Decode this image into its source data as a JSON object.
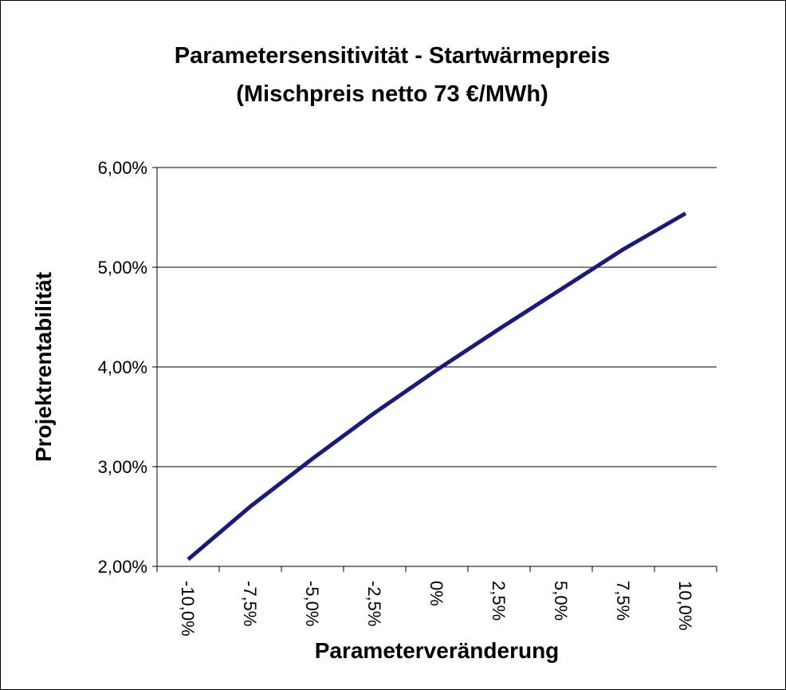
{
  "chart_data": {
    "type": "line",
    "title": [
      "Parametersensitivität - Startwärmepreis",
      "(Mischpreis netto 73 €/MWh)"
    ],
    "x_label": "Parameterveränderung",
    "y_label": "Projektrentabilität",
    "categories": [
      "-10,0%",
      "-7,5%",
      "-5,0%",
      "-2,5%",
      "0%",
      "2,5%",
      "5,0%",
      "7,5%",
      "10,0%"
    ],
    "series": [
      {
        "color": "#1a1a7a",
        "values": [
          2.07,
          2.6,
          3.08,
          3.54,
          3.97,
          4.38,
          4.78,
          5.18,
          5.54
        ]
      }
    ],
    "ylim": [
      2,
      6
    ],
    "yticks": [
      {
        "value": 2,
        "label": "2,00%"
      },
      {
        "value": 3,
        "label": "3,00%"
      },
      {
        "value": 4,
        "label": "4,00%"
      },
      {
        "value": 5,
        "label": "5,00%"
      },
      {
        "value": 6,
        "label": "6,00%"
      }
    ],
    "grid": true
  }
}
